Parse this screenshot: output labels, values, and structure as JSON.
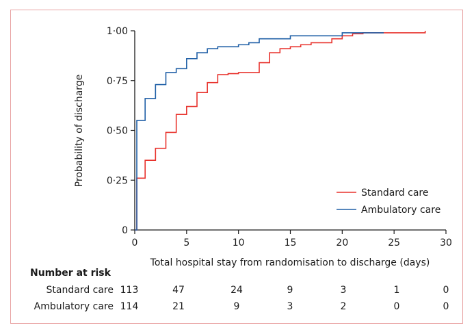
{
  "chart_data": {
    "type": "line",
    "xlabel": "Total hospital stay from randomisation to discharge (days)",
    "ylabel": "Probability of discharge",
    "xlim": [
      0,
      30
    ],
    "ylim": [
      0,
      1
    ],
    "x_ticks": [
      "0",
      "5",
      "10",
      "15",
      "20",
      "25",
      "30"
    ],
    "x_tick_values": [
      0,
      5,
      10,
      15,
      20,
      25,
      30
    ],
    "y_ticks": [
      "0",
      "0·25",
      "0·50",
      "0·75",
      "1·00"
    ],
    "y_tick_values": [
      0,
      0.25,
      0.5,
      0.75,
      1.0
    ],
    "grid": false,
    "legend_position": "bottom-right",
    "series": [
      {
        "name": "Standard care",
        "color": "#e8322c",
        "steps": [
          [
            0,
            0
          ],
          [
            0.2,
            0.26
          ],
          [
            1,
            0.35
          ],
          [
            2,
            0.41
          ],
          [
            3,
            0.49
          ],
          [
            4,
            0.58
          ],
          [
            5,
            0.62
          ],
          [
            6,
            0.69
          ],
          [
            7,
            0.74
          ],
          [
            8,
            0.78
          ],
          [
            9,
            0.785
          ],
          [
            10,
            0.79
          ],
          [
            12,
            0.84
          ],
          [
            13,
            0.89
          ],
          [
            14,
            0.91
          ],
          [
            15,
            0.92
          ],
          [
            16,
            0.93
          ],
          [
            17,
            0.94
          ],
          [
            19,
            0.96
          ],
          [
            20,
            0.975
          ],
          [
            21,
            0.985
          ],
          [
            22,
            0.99
          ],
          [
            28,
            1.0
          ]
        ],
        "end_x": 28
      },
      {
        "name": "Ambulatory care",
        "color": "#1f5fa6",
        "steps": [
          [
            0,
            0
          ],
          [
            0.2,
            0.55
          ],
          [
            1,
            0.66
          ],
          [
            2,
            0.73
          ],
          [
            3,
            0.79
          ],
          [
            4,
            0.81
          ],
          [
            5,
            0.86
          ],
          [
            6,
            0.89
          ],
          [
            7,
            0.91
          ],
          [
            8,
            0.92
          ],
          [
            10,
            0.93
          ],
          [
            11,
            0.94
          ],
          [
            12,
            0.96
          ],
          [
            15,
            0.975
          ],
          [
            20,
            0.99
          ],
          [
            24,
            0.99
          ]
        ],
        "end_x": 24
      }
    ],
    "risk_table": {
      "title": "Number at risk",
      "x_values": [
        0,
        5,
        10,
        15,
        20,
        25,
        30
      ],
      "rows": [
        {
          "label": "Standard care",
          "values": [
            "113",
            "47",
            "24",
            "9",
            "3",
            "1",
            "0"
          ]
        },
        {
          "label": "Ambulatory care",
          "values": [
            "114",
            "21",
            "9",
            "3",
            "2",
            "0",
            "0"
          ]
        }
      ]
    }
  }
}
